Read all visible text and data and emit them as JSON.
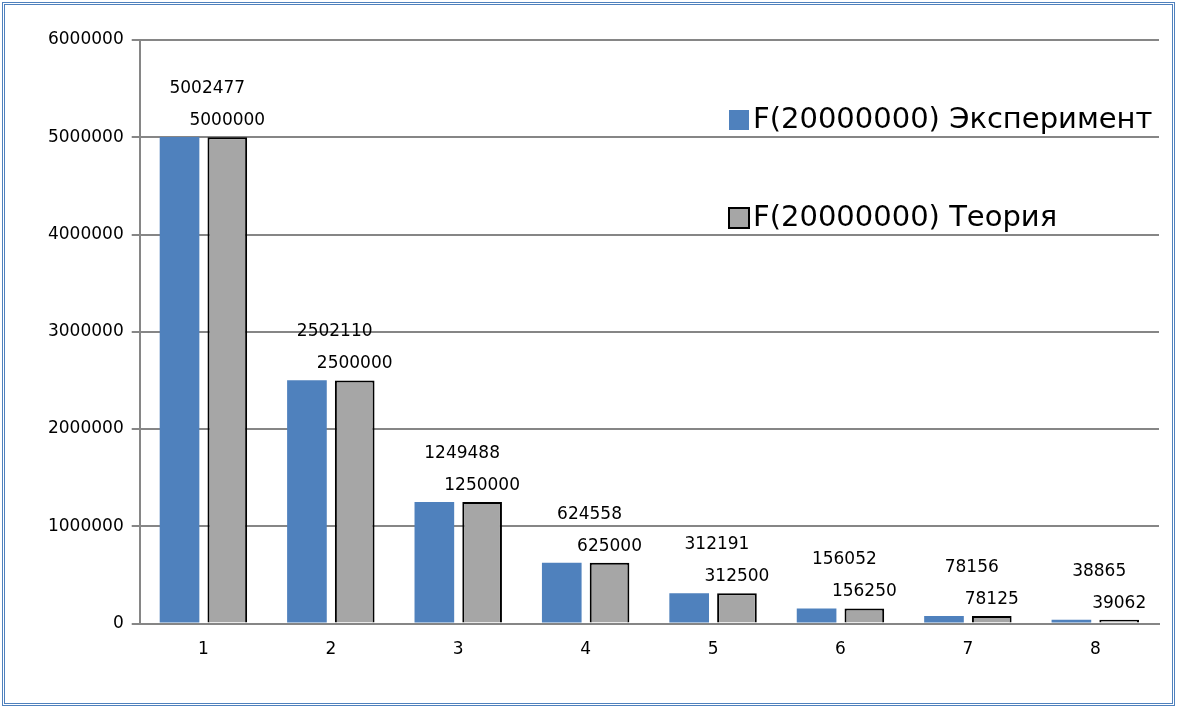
{
  "chart_data": {
    "type": "bar",
    "categories": [
      "1",
      "2",
      "3",
      "4",
      "5",
      "6",
      "7",
      "8"
    ],
    "series": [
      {
        "name": "F(20000000) Эксперимент",
        "color": "#4f81bd",
        "values": [
          5002477,
          2502110,
          1249488,
          624558,
          312191,
          156052,
          78156,
          38865
        ]
      },
      {
        "name": "F(20000000) Теория",
        "color": "#a6a6a6",
        "values": [
          5000000,
          2500000,
          1250000,
          625000,
          312500,
          156250,
          78125,
          39062
        ]
      }
    ],
    "ylim": [
      0,
      6000000
    ],
    "yticks": [
      0,
      1000000,
      2000000,
      3000000,
      4000000,
      5000000,
      6000000
    ],
    "grid": "y",
    "legend": "top right",
    "data_labels": true
  }
}
